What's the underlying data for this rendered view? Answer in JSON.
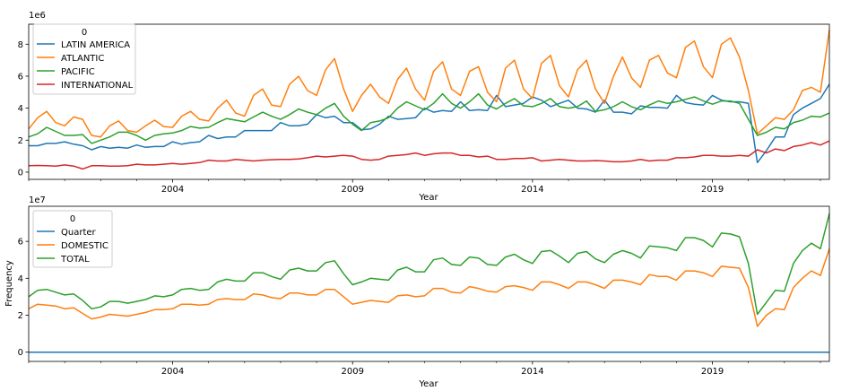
{
  "chart_data": [
    {
      "type": "line",
      "offset_label": "1e6",
      "xlabel": "Year",
      "ylabel": "",
      "xlim": [
        2000.0,
        2022.25
      ],
      "ylim": [
        -0.45,
        9.25
      ],
      "x_ticks": [
        2004,
        2009,
        2014,
        2019
      ],
      "y_ticks": [
        0,
        2,
        4,
        6,
        8
      ],
      "legend": {
        "title": "0",
        "placement": "upper-left"
      },
      "x": [
        2000.0,
        2000.25,
        2000.5,
        2000.75,
        2001.0,
        2001.25,
        2001.5,
        2001.75,
        2002.0,
        2002.25,
        2002.5,
        2002.75,
        2003.0,
        2003.25,
        2003.5,
        2003.75,
        2004.0,
        2004.25,
        2004.5,
        2004.75,
        2005.0,
        2005.25,
        2005.5,
        2005.75,
        2006.0,
        2006.25,
        2006.5,
        2006.75,
        2007.0,
        2007.25,
        2007.5,
        2007.75,
        2008.0,
        2008.25,
        2008.5,
        2008.75,
        2009.0,
        2009.25,
        2009.5,
        2009.75,
        2010.0,
        2010.25,
        2010.5,
        2010.75,
        2011.0,
        2011.25,
        2011.5,
        2011.75,
        2012.0,
        2012.25,
        2012.5,
        2012.75,
        2013.0,
        2013.25,
        2013.5,
        2013.75,
        2014.0,
        2014.25,
        2014.5,
        2014.75,
        2015.0,
        2015.25,
        2015.5,
        2015.75,
        2016.0,
        2016.25,
        2016.5,
        2016.75,
        2017.0,
        2017.25,
        2017.5,
        2017.75,
        2018.0,
        2018.25,
        2018.5,
        2018.75,
        2019.0,
        2019.25,
        2019.5,
        2019.75,
        2020.0,
        2020.25,
        2020.5,
        2020.75,
        2021.0,
        2021.25,
        2021.5,
        2021.75,
        2022.0,
        2022.25
      ],
      "series": [
        {
          "name": "LATIN AMERICA",
          "color": "#1f77b4",
          "values": [
            1.65,
            1.65,
            1.8,
            1.8,
            1.9,
            1.75,
            1.65,
            1.4,
            1.6,
            1.5,
            1.55,
            1.5,
            1.7,
            1.55,
            1.6,
            1.6,
            1.9,
            1.75,
            1.85,
            1.9,
            2.3,
            2.1,
            2.2,
            2.2,
            2.6,
            2.6,
            2.6,
            2.6,
            3.1,
            2.9,
            2.9,
            3.0,
            3.6,
            3.4,
            3.5,
            3.1,
            3.1,
            2.65,
            2.7,
            3.0,
            3.5,
            3.3,
            3.35,
            3.4,
            4.0,
            3.75,
            3.85,
            3.8,
            4.4,
            3.85,
            3.9,
            3.85,
            4.8,
            4.1,
            4.2,
            4.3,
            4.7,
            4.5,
            4.1,
            4.3,
            4.5,
            4.0,
            3.95,
            3.75,
            4.5,
            3.75,
            3.75,
            3.65,
            4.15,
            4.05,
            4.05,
            4.0,
            4.8,
            4.35,
            4.25,
            4.2,
            4.8,
            4.5,
            4.4,
            4.4,
            4.3,
            0.6,
            1.35,
            2.2,
            2.2,
            3.6,
            4.0,
            4.3,
            4.6,
            5.5
          ]
        },
        {
          "name": "ATLANTIC",
          "color": "#ff7f0e",
          "values": [
            2.7,
            3.4,
            3.8,
            3.1,
            2.9,
            3.45,
            3.3,
            2.3,
            2.2,
            2.9,
            3.2,
            2.6,
            2.5,
            2.9,
            3.25,
            2.85,
            2.8,
            3.5,
            3.8,
            3.3,
            3.2,
            4.0,
            4.5,
            3.7,
            3.5,
            4.8,
            5.2,
            4.2,
            4.1,
            5.5,
            6.0,
            5.1,
            4.8,
            6.4,
            7.1,
            5.2,
            3.8,
            4.8,
            5.5,
            4.7,
            4.3,
            5.8,
            6.5,
            5.2,
            4.5,
            6.3,
            6.9,
            5.2,
            4.8,
            6.3,
            6.6,
            5.0,
            4.4,
            6.5,
            7.0,
            5.2,
            4.6,
            6.8,
            7.3,
            5.4,
            4.7,
            6.4,
            7.0,
            5.2,
            4.3,
            6.0,
            7.2,
            5.9,
            5.3,
            7.0,
            7.3,
            6.2,
            5.9,
            7.8,
            8.2,
            6.6,
            5.9,
            8.0,
            8.4,
            7.2,
            5.1,
            2.4,
            2.9,
            3.4,
            3.3,
            3.9,
            5.1,
            5.3,
            5.0,
            8.9
          ]
        },
        {
          "name": "PACIFIC",
          "color": "#2ca02c",
          "values": [
            2.2,
            2.4,
            2.8,
            2.55,
            2.3,
            2.3,
            2.35,
            1.8,
            2.0,
            2.2,
            2.5,
            2.5,
            2.3,
            2.0,
            2.3,
            2.4,
            2.45,
            2.6,
            2.85,
            2.75,
            2.8,
            3.1,
            3.35,
            3.25,
            3.15,
            3.45,
            3.75,
            3.5,
            3.3,
            3.6,
            3.95,
            3.75,
            3.6,
            4.0,
            4.3,
            3.5,
            3.0,
            2.6,
            3.1,
            3.2,
            3.4,
            4.0,
            4.4,
            4.15,
            3.9,
            4.3,
            4.9,
            4.3,
            4.0,
            4.4,
            4.9,
            4.2,
            3.95,
            4.3,
            4.6,
            4.15,
            4.1,
            4.3,
            4.6,
            4.1,
            4.0,
            4.1,
            4.45,
            3.8,
            3.9,
            4.1,
            4.4,
            4.1,
            3.9,
            4.2,
            4.45,
            4.3,
            4.4,
            4.55,
            4.7,
            4.45,
            4.25,
            4.45,
            4.45,
            4.3,
            3.3,
            2.3,
            2.5,
            2.8,
            2.7,
            3.1,
            3.25,
            3.5,
            3.45,
            3.7
          ]
        },
        {
          "name": "INTERNATIONAL",
          "color": "#d62728",
          "values": [
            0.4,
            0.42,
            0.4,
            0.38,
            0.45,
            0.38,
            0.2,
            0.4,
            0.4,
            0.38,
            0.38,
            0.4,
            0.5,
            0.45,
            0.45,
            0.5,
            0.55,
            0.5,
            0.55,
            0.6,
            0.75,
            0.7,
            0.7,
            0.8,
            0.75,
            0.7,
            0.75,
            0.78,
            0.8,
            0.8,
            0.82,
            0.9,
            1.0,
            0.95,
            1.0,
            1.05,
            1.0,
            0.8,
            0.75,
            0.8,
            1.0,
            1.05,
            1.1,
            1.2,
            1.05,
            1.15,
            1.2,
            1.2,
            1.05,
            1.05,
            0.95,
            1.0,
            0.8,
            0.8,
            0.85,
            0.85,
            0.9,
            0.7,
            0.75,
            0.8,
            0.75,
            0.7,
            0.7,
            0.72,
            0.7,
            0.65,
            0.65,
            0.7,
            0.8,
            0.7,
            0.75,
            0.75,
            0.9,
            0.9,
            0.95,
            1.05,
            1.05,
            1.0,
            1.0,
            1.05,
            1.0,
            1.4,
            1.2,
            1.45,
            1.35,
            1.6,
            1.7,
            1.85,
            1.7,
            1.95
          ]
        }
      ]
    },
    {
      "type": "line",
      "offset_label": "1e7",
      "xlabel": "Year",
      "ylabel": "Frequency",
      "xlim": [
        2000.0,
        2022.25
      ],
      "ylim": [
        -0.5,
        7.9
      ],
      "x_ticks": [
        2004,
        2009,
        2014,
        2019
      ],
      "y_ticks": [
        0,
        2,
        4,
        6
      ],
      "legend": {
        "title": "0",
        "placement": "upper-left"
      },
      "x": [
        2000.0,
        2000.25,
        2000.5,
        2000.75,
        2001.0,
        2001.25,
        2001.5,
        2001.75,
        2002.0,
        2002.25,
        2002.5,
        2002.75,
        2003.0,
        2003.25,
        2003.5,
        2003.75,
        2004.0,
        2004.25,
        2004.5,
        2004.75,
        2005.0,
        2005.25,
        2005.5,
        2005.75,
        2006.0,
        2006.25,
        2006.5,
        2006.75,
        2007.0,
        2007.25,
        2007.5,
        2007.75,
        2008.0,
        2008.25,
        2008.5,
        2008.75,
        2009.0,
        2009.25,
        2009.5,
        2009.75,
        2010.0,
        2010.25,
        2010.5,
        2010.75,
        2011.0,
        2011.25,
        2011.5,
        2011.75,
        2012.0,
        2012.25,
        2012.5,
        2012.75,
        2013.0,
        2013.25,
        2013.5,
        2013.75,
        2014.0,
        2014.25,
        2014.5,
        2014.75,
        2015.0,
        2015.25,
        2015.5,
        2015.75,
        2016.0,
        2016.25,
        2016.5,
        2016.75,
        2017.0,
        2017.25,
        2017.5,
        2017.75,
        2018.0,
        2018.25,
        2018.5,
        2018.75,
        2019.0,
        2019.25,
        2019.5,
        2019.75,
        2020.0,
        2020.25,
        2020.5,
        2020.75,
        2021.0,
        2021.25,
        2021.5,
        2021.75,
        2022.0,
        2022.25
      ],
      "series": [
        {
          "name": "Quarter",
          "color": "#1f77b4",
          "values": [
            0.0002,
            0.0002,
            0.0002,
            0.0002,
            0.0002,
            0.0002,
            0.0002,
            0.0002,
            0.0002,
            0.0002,
            0.0002,
            0.0002,
            0.0002,
            0.0002,
            0.0002,
            0.0002,
            0.0002,
            0.0002,
            0.0002,
            0.0002,
            0.0002,
            0.0002,
            0.0002,
            0.0002,
            0.0002,
            0.0002,
            0.0002,
            0.0002,
            0.0002,
            0.0002,
            0.0002,
            0.0002,
            0.0002,
            0.0002,
            0.0002,
            0.0002,
            0.0002,
            0.0002,
            0.0002,
            0.0002,
            0.0002,
            0.0002,
            0.0002,
            0.0002,
            0.0002,
            0.0002,
            0.0002,
            0.0002,
            0.0002,
            0.0002,
            0.0002,
            0.0002,
            0.0002,
            0.0002,
            0.0002,
            0.0002,
            0.0002,
            0.0002,
            0.0002,
            0.0002,
            0.0002,
            0.0002,
            0.0002,
            0.0002,
            0.0002,
            0.0002,
            0.0002,
            0.0002,
            0.0002,
            0.0002,
            0.0002,
            0.0002,
            0.0002,
            0.0002,
            0.0002,
            0.0002,
            0.0002,
            0.0002,
            0.0002,
            0.0002,
            0.0002,
            0.0002,
            0.0002,
            0.0002,
            0.0002,
            0.0002,
            0.0002,
            0.0002,
            0.0002,
            0.0002
          ]
        },
        {
          "name": "DOMESTIC",
          "color": "#ff7f0e",
          "values": [
            2.35,
            2.6,
            2.55,
            2.5,
            2.35,
            2.4,
            2.1,
            1.8,
            1.9,
            2.05,
            2.0,
            1.95,
            2.05,
            2.15,
            2.3,
            2.3,
            2.35,
            2.6,
            2.6,
            2.55,
            2.6,
            2.85,
            2.9,
            2.85,
            2.85,
            3.15,
            3.1,
            2.95,
            2.9,
            3.2,
            3.2,
            3.1,
            3.1,
            3.4,
            3.4,
            3.0,
            2.6,
            2.7,
            2.8,
            2.75,
            2.7,
            3.05,
            3.1,
            3.0,
            3.05,
            3.45,
            3.45,
            3.25,
            3.2,
            3.55,
            3.45,
            3.3,
            3.25,
            3.55,
            3.6,
            3.5,
            3.35,
            3.8,
            3.8,
            3.65,
            3.45,
            3.8,
            3.8,
            3.65,
            3.45,
            3.9,
            3.9,
            3.8,
            3.65,
            4.2,
            4.1,
            4.1,
            3.9,
            4.4,
            4.4,
            4.3,
            4.1,
            4.65,
            4.6,
            4.55,
            3.5,
            1.4,
            2.0,
            2.35,
            2.3,
            3.5,
            4.0,
            4.4,
            4.15,
            5.6
          ]
        },
        {
          "name": "TOTAL",
          "color": "#2ca02c",
          "values": [
            3.0,
            3.35,
            3.4,
            3.25,
            3.1,
            3.15,
            2.8,
            2.35,
            2.45,
            2.75,
            2.75,
            2.65,
            2.75,
            2.85,
            3.05,
            3.0,
            3.1,
            3.4,
            3.45,
            3.35,
            3.4,
            3.8,
            3.95,
            3.85,
            3.85,
            4.3,
            4.3,
            4.1,
            3.95,
            4.45,
            4.55,
            4.4,
            4.4,
            4.85,
            4.95,
            4.25,
            3.65,
            3.8,
            4.0,
            3.95,
            3.9,
            4.45,
            4.6,
            4.35,
            4.35,
            5.0,
            5.1,
            4.75,
            4.7,
            5.15,
            5.1,
            4.75,
            4.7,
            5.15,
            5.3,
            5.0,
            4.8,
            5.45,
            5.5,
            5.2,
            4.85,
            5.35,
            5.45,
            5.05,
            4.85,
            5.3,
            5.5,
            5.35,
            5.1,
            5.75,
            5.7,
            5.65,
            5.5,
            6.2,
            6.2,
            6.05,
            5.7,
            6.45,
            6.4,
            6.25,
            4.8,
            2.05,
            2.7,
            3.35,
            3.3,
            4.8,
            5.5,
            5.9,
            5.6,
            7.5
          ]
        }
      ]
    }
  ]
}
